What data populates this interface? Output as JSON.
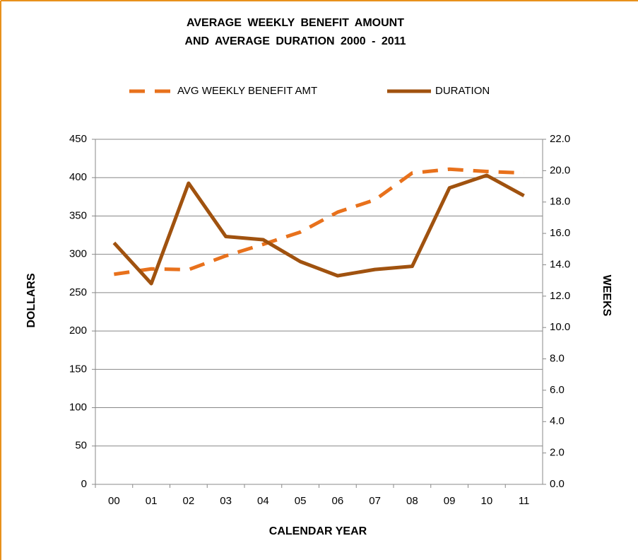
{
  "chart_data": {
    "type": "line",
    "title": [
      "AVERAGE WEEKLY BENEFIT AMOUNT",
      "AND AVERAGE DURATION 2000 - 2011"
    ],
    "x_label": "CALENDAR YEAR",
    "y_label": "DOLLARS",
    "y2_label": "WEEKS",
    "categories": [
      "00",
      "01",
      "02",
      "03",
      "04",
      "05",
      "06",
      "07",
      "08",
      "09",
      "10",
      "11"
    ],
    "series": [
      {
        "name": "AVG WEEKLY BENEFIT AMT",
        "color": "#e8711c",
        "dash": true,
        "values": [
          274,
          281,
          280,
          298,
          313,
          329,
          355,
          371,
          406,
          411,
          408,
          406
        ]
      },
      {
        "name": "DURATION",
        "color": "#a0520f",
        "axis": "y2",
        "values": [
          15.4,
          12.8,
          19.2,
          15.8,
          15.6,
          14.2,
          13.3,
          13.7,
          13.9,
          18.9,
          19.7,
          18.4
        ]
      }
    ],
    "ylim": [
      0,
      450
    ],
    "yticks": [
      0,
      50,
      100,
      150,
      200,
      250,
      300,
      350,
      400,
      450
    ],
    "y2lim": [
      0,
      22
    ],
    "y2ticks": [
      {
        "value": 0,
        "label": "0.0"
      },
      {
        "value": 2,
        "label": "2.0"
      },
      {
        "value": 4,
        "label": "4.0"
      },
      {
        "value": 6,
        "label": "6.0"
      },
      {
        "value": 8,
        "label": "8.0"
      },
      {
        "value": 10,
        "label": "10.0"
      },
      {
        "value": 12,
        "label": "12.0"
      },
      {
        "value": 14,
        "label": "14.0"
      },
      {
        "value": 16,
        "label": "16.0"
      },
      {
        "value": 18,
        "label": "18.0"
      },
      {
        "value": 20,
        "label": "20.0"
      },
      {
        "value": 22,
        "label": "22.0"
      }
    ],
    "grid": true,
    "legend": "top"
  }
}
